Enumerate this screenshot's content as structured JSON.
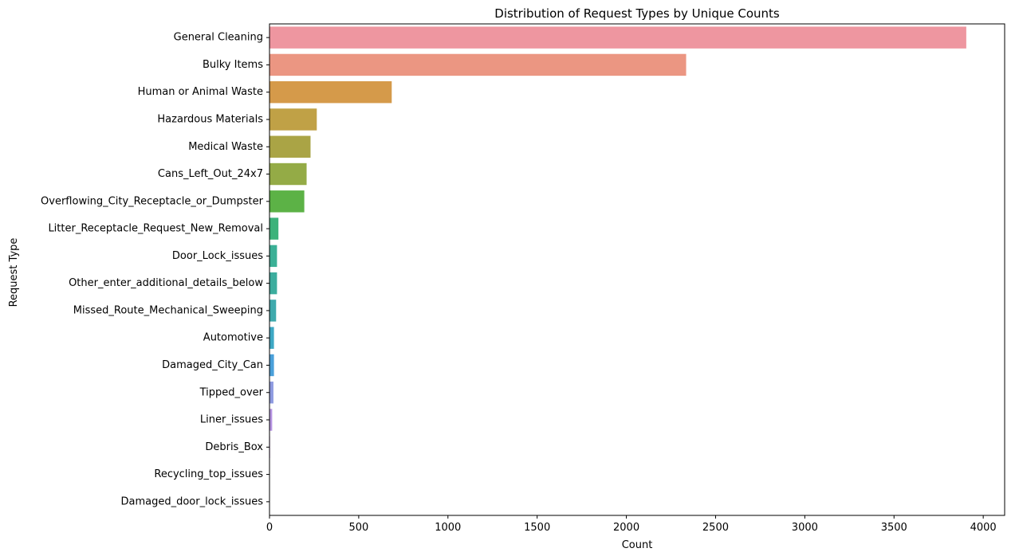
{
  "chart_data": {
    "type": "bar",
    "orientation": "horizontal",
    "title": "Distribution of Request Types by Unique Counts",
    "xlabel": "Count",
    "ylabel": "Request Type",
    "xlim": [
      0,
      4120
    ],
    "xticks": [
      0,
      500,
      1000,
      1500,
      2000,
      2500,
      3000,
      3500,
      4000
    ],
    "grid": false,
    "legend": "none",
    "categories": [
      "General Cleaning",
      "Bulky Items",
      "Human or Animal Waste",
      "Hazardous Materials",
      "Medical Waste",
      "Cans_Left_Out_24x7",
      "Overflowing_City_Receptacle_or_Dumpster",
      "Litter_Receptacle_Request_New_Removal",
      "Door_Lock_issues",
      "Other_enter_additional_details_below",
      "Missed_Route_Mechanical_Sweeping",
      "Automotive",
      "Damaged_City_Can",
      "Tipped_over",
      "Liner_issues",
      "Debris_Box",
      "Recycling_top_issues",
      "Damaged_door_lock_issues"
    ],
    "values": [
      3905,
      2335,
      685,
      265,
      230,
      208,
      195,
      50,
      42,
      42,
      37,
      25,
      25,
      22,
      15,
      3,
      2,
      1
    ],
    "colors": [
      "#ee96a0",
      "#eb9682",
      "#d59a4a",
      "#c0a146",
      "#aaa445",
      "#94ab46",
      "#5cb246",
      "#3cb27a",
      "#3bb096",
      "#3cad9e",
      "#3eaaad",
      "#3ea8c4",
      "#4aa0da",
      "#8e9ae0",
      "#b694e2",
      "#cf8cdb",
      "#e48bc4",
      "#eb8fb0"
    ]
  }
}
